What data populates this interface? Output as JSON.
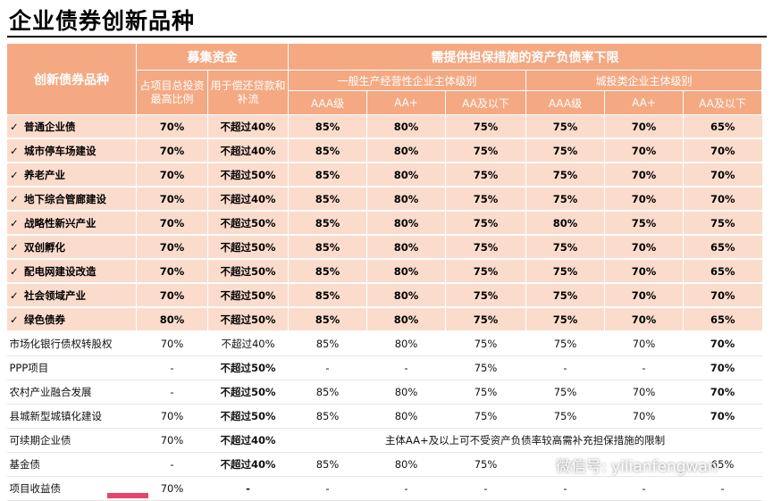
{
  "title": "企业债券创新品种",
  "header": {
    "col_product": "创新债券品种",
    "group_fund": "募集资金",
    "group_ratio": "需提供担保措施的资产负债率下限",
    "fund_col1": "占项目总投资最高比例",
    "fund_col2": "用于偿还贷款和补流",
    "sub_general": "一般生产经营性企业主体级别",
    "sub_urban": "城投类企业主体级别",
    "ratings": [
      "AAA级",
      "AA+",
      "AA及以下",
      "AAA级",
      "AA+",
      "AA及以下"
    ]
  },
  "rows": [
    {
      "name": "普通企业债",
      "c": [
        "70%",
        "不超过40%",
        "85%",
        "80%",
        "75%",
        "75%",
        "70%",
        "65%"
      ]
    },
    {
      "name": "城市停车场建设",
      "c": [
        "70%",
        "不超过40%",
        "85%",
        "80%",
        "75%",
        "75%",
        "70%",
        "70%"
      ]
    },
    {
      "name": "养老产业",
      "c": [
        "70%",
        "不超过50%",
        "85%",
        "80%",
        "75%",
        "75%",
        "70%",
        "70%"
      ]
    },
    {
      "name": "地下综合管廊建设",
      "c": [
        "70%",
        "不超过40%",
        "85%",
        "80%",
        "75%",
        "75%",
        "70%",
        "70%"
      ]
    },
    {
      "name": "战略性新兴产业",
      "c": [
        "70%",
        "不超过50%",
        "85%",
        "80%",
        "75%",
        "80%",
        "75%",
        "75%"
      ]
    },
    {
      "name": "双创孵化",
      "c": [
        "70%",
        "不超过50%",
        "85%",
        "80%",
        "75%",
        "75%",
        "70%",
        "65%"
      ]
    },
    {
      "name": "配电网建设改造",
      "c": [
        "70%",
        "不超过50%",
        "85%",
        "80%",
        "75%",
        "75%",
        "70%",
        "65%"
      ]
    },
    {
      "name": "社会领域产业",
      "c": [
        "70%",
        "不超过50%",
        "85%",
        "80%",
        "75%",
        "75%",
        "70%",
        "70%"
      ]
    },
    {
      "name": "绿色债券",
      "c": [
        "80%",
        "不超过50%",
        "85%",
        "80%",
        "75%",
        "75%",
        "70%",
        "65%"
      ]
    },
    {
      "name": "市场化银行债权转股权",
      "c": [
        "70%",
        "不超过40%",
        "85%",
        "80%",
        "75%",
        "75%",
        "70%",
        "70%"
      ]
    },
    {
      "name": "PPP项目",
      "c": [
        "-",
        "不超过50%",
        "-",
        "-",
        "75%",
        "-",
        "-",
        "70%"
      ]
    },
    {
      "name": "农村产业融合发展",
      "c": [
        "-",
        "不超过50%",
        "85%",
        "80%",
        "75%",
        "75%",
        "70%",
        "70%"
      ]
    },
    {
      "name": "县城新型城镇化建设",
      "c": [
        "70%",
        "不超过50%",
        "85%",
        "80%",
        "75%",
        "75%",
        "70%",
        "70%"
      ]
    },
    {
      "name": "可续期企业债",
      "c": [
        "70%",
        "不超过40%"
      ],
      "merged": "主体AA+及以上可不受资产负债率较高需补充担保措施的限制"
    },
    {
      "name": "基金债",
      "c": [
        "-",
        "不超过40%",
        "85%",
        "80%",
        "75%",
        "",
        "",
        "65%"
      ]
    },
    {
      "name": "项目收益债",
      "c": [
        "70%",
        "-",
        "-",
        "-",
        "-",
        "-",
        "-",
        "-"
      ]
    }
  ],
  "watermark": "微信号: yilianfengwan",
  "colors": {
    "header_bg": "#f4a983",
    "shaded_row_bg": "#fbdccc",
    "emphasis_red": "#c0392b"
  }
}
